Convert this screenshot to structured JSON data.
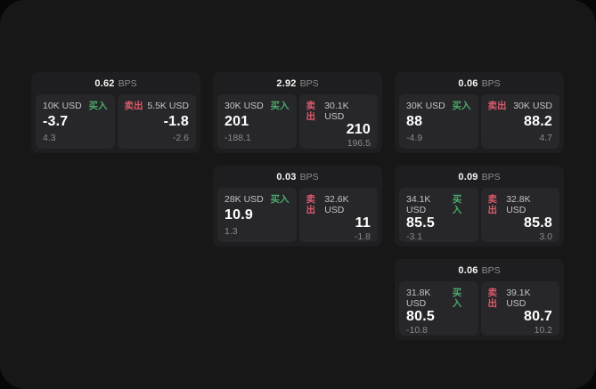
{
  "labels": {
    "buy": "买入",
    "sell": "卖出",
    "bps": "BPS"
  },
  "colors": {
    "buy_green": "#4aa96a",
    "sell_red": "#d95a6b",
    "surface": "#171718",
    "card": "#1e1e20",
    "tile": "#27272a",
    "value_text": "#ffffff",
    "muted_text": "#8a8a8c"
  },
  "cards": [
    {
      "bps": "0.62",
      "buy": {
        "amount": "10K USD",
        "value": "-3.7",
        "delta": "4.3"
      },
      "sell": {
        "amount": "5.5K USD",
        "value": "-1.8",
        "delta": "-2.6"
      }
    },
    {
      "bps": "2.92",
      "buy": {
        "amount": "30K USD",
        "value": "201",
        "delta": "-188.1"
      },
      "sell": {
        "amount": "30.1K USD",
        "value": "210",
        "delta": "196.5"
      }
    },
    {
      "bps": "0.06",
      "buy": {
        "amount": "30K USD",
        "value": "88",
        "delta": "-4.9"
      },
      "sell": {
        "amount": "30K USD",
        "value": "88.2",
        "delta": "4.7"
      }
    },
    {
      "bps": "0.03",
      "buy": {
        "amount": "28K USD",
        "value": "10.9",
        "delta": "1.3"
      },
      "sell": {
        "amount": "32.6K USD",
        "value": "11",
        "delta": "-1.8"
      }
    },
    {
      "bps": "0.09",
      "buy": {
        "amount": "34.1K USD",
        "value": "85.5",
        "delta": "-3.1"
      },
      "sell": {
        "amount": "32.8K USD",
        "value": "85.8",
        "delta": "3.0"
      }
    },
    {
      "bps": "0.06",
      "buy": {
        "amount": "31.8K USD",
        "value": "80.5",
        "delta": "-10.8"
      },
      "sell": {
        "amount": "39.1K USD",
        "value": "80.7",
        "delta": "10.2"
      }
    }
  ]
}
